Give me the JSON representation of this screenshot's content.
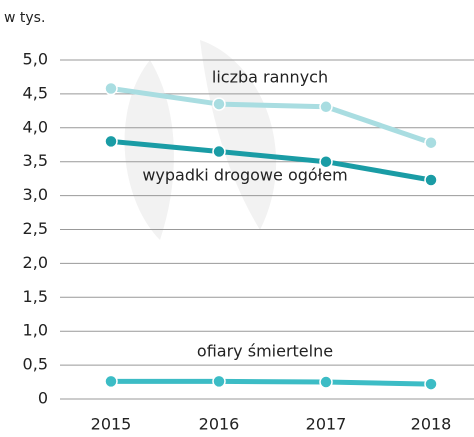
{
  "chart_data": {
    "type": "line",
    "y_label": "w tys.",
    "categories": [
      "2015",
      "2016",
      "2017",
      "2018"
    ],
    "series": [
      {
        "name": "liczba rannych",
        "color": "#a9dde1",
        "values": [
          4.58,
          4.35,
          4.31,
          3.78
        ]
      },
      {
        "name": "wypadki drogowe ogółem",
        "color": "#1a9ca5",
        "values": [
          3.8,
          3.65,
          3.5,
          3.23
        ]
      },
      {
        "name": "ofiary śmiertelne",
        "color": "#3cbcc5",
        "values": [
          0.26,
          0.26,
          0.25,
          0.22
        ]
      }
    ],
    "ylim": [
      0,
      5
    ],
    "yticks": [
      0,
      {
        "value": 0.5,
        "label": "0,5"
      },
      {
        "value": 1,
        "label": "1,0"
      },
      {
        "value": 1.5,
        "label": "1,5"
      },
      {
        "value": 2,
        "label": "2,0"
      },
      {
        "value": 2.5,
        "label": "2,5"
      },
      {
        "value": 3,
        "label": "3,0"
      },
      {
        "value": 3.5,
        "label": "3,5"
      },
      {
        "value": 4,
        "label": "4,0"
      },
      {
        "value": 4.5,
        "label": "4,5"
      },
      {
        "value": 5,
        "label": "5,0"
      }
    ],
    "grid": true
  }
}
